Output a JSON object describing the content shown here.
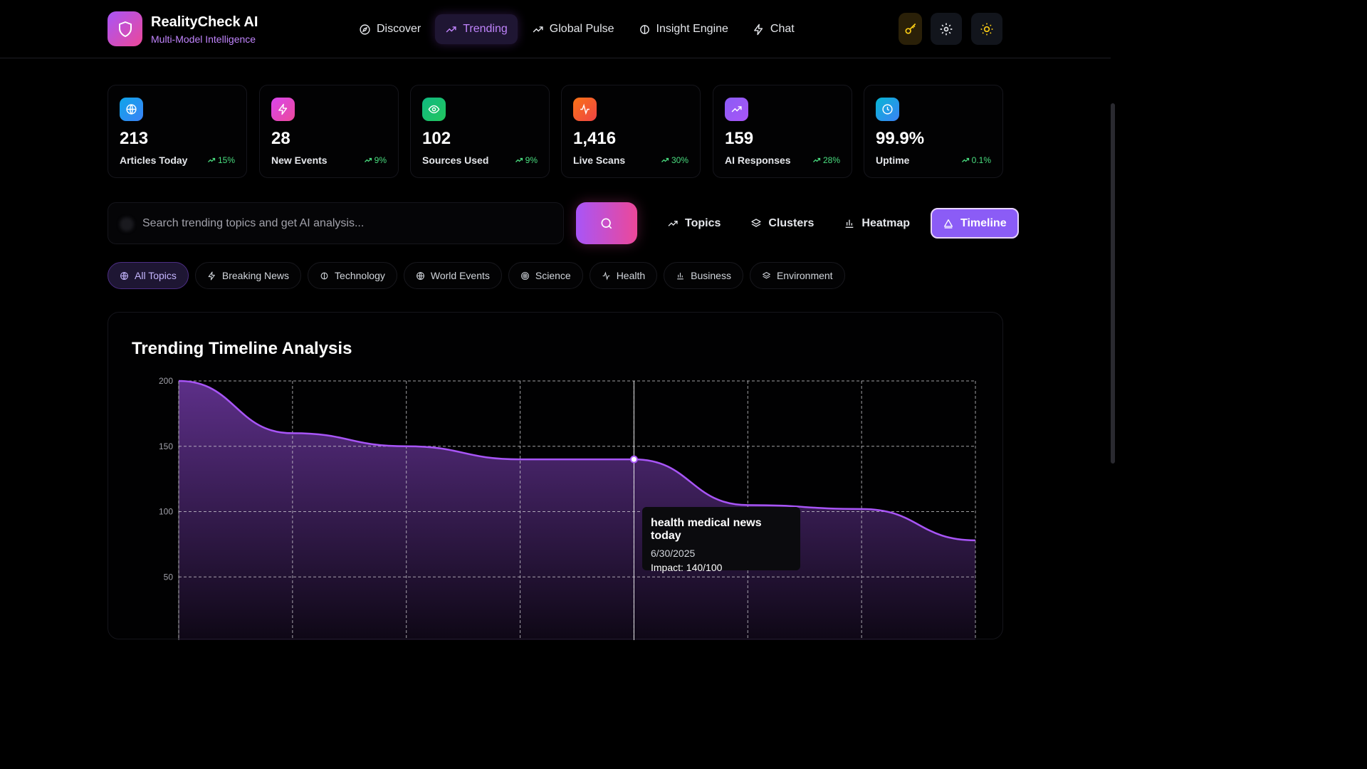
{
  "app": {
    "title": "RealityCheck AI",
    "subtitle": "Multi-Model Intelligence"
  },
  "nav": {
    "items": [
      {
        "label": "Discover",
        "icon": "compass-icon"
      },
      {
        "label": "Trending",
        "icon": "trending-up-icon",
        "active": true
      },
      {
        "label": "Global Pulse",
        "icon": "trending-up-icon"
      },
      {
        "label": "Insight Engine",
        "icon": "brain-icon"
      },
      {
        "label": "Chat",
        "icon": "zap-icon"
      }
    ]
  },
  "header_buttons": [
    {
      "name": "key-icon",
      "color": "#facc15"
    },
    {
      "name": "gear-icon",
      "color": "#e5e7eb"
    },
    {
      "name": "sun-icon",
      "color": "#facc15"
    }
  ],
  "stats": [
    {
      "value": "213",
      "label": "Articles Today",
      "change": "15%",
      "icon": "globe-icon",
      "color": "#0ea5e9"
    },
    {
      "value": "28",
      "label": "New Events",
      "change": "9%",
      "icon": "zap-icon",
      "color": "#d946ef"
    },
    {
      "value": "102",
      "label": "Sources Used",
      "change": "9%",
      "icon": "eye-icon",
      "color": "#10b981"
    },
    {
      "value": "1,416",
      "label": "Live Scans",
      "change": "30%",
      "icon": "activity-icon",
      "color": "#f97316"
    },
    {
      "value": "159",
      "label": "AI Responses",
      "change": "28%",
      "icon": "trending-up-icon",
      "color": "#8b5cf6"
    },
    {
      "value": "99.9%",
      "label": "Uptime",
      "change": "0.1%",
      "icon": "clock-icon",
      "color": "#06b6d4"
    }
  ],
  "search": {
    "placeholder": "Search trending topics and get AI analysis..."
  },
  "view_tabs": [
    {
      "label": "Topics",
      "icon": "trending-up-icon"
    },
    {
      "label": "Clusters",
      "icon": "layers-icon"
    },
    {
      "label": "Heatmap",
      "icon": "bar-chart-icon"
    },
    {
      "label": "Timeline",
      "icon": "triangle-icon",
      "active": true
    }
  ],
  "filters": [
    {
      "label": "All Topics",
      "icon": "globe-icon",
      "active": true
    },
    {
      "label": "Breaking News",
      "icon": "zap-icon"
    },
    {
      "label": "Technology",
      "icon": "brain-icon"
    },
    {
      "label": "World Events",
      "icon": "globe-icon"
    },
    {
      "label": "Science",
      "icon": "target-icon"
    },
    {
      "label": "Health",
      "icon": "activity-icon"
    },
    {
      "label": "Business",
      "icon": "bar-chart-icon"
    },
    {
      "label": "Environment",
      "icon": "layers-icon"
    }
  ],
  "chart_data": {
    "type": "area",
    "title": "Trending Timeline Analysis",
    "x_count": 8,
    "y": [
      200,
      160,
      150,
      140,
      140,
      105,
      102,
      78
    ],
    "ylim": [
      0,
      200
    ],
    "yticks": [
      200,
      150,
      100,
      50
    ],
    "grid": true,
    "color": "#a855f7",
    "tooltip": {
      "index": 4,
      "title": "health medical news today",
      "date": "6/30/2025",
      "impact": "Impact: 140/100"
    }
  }
}
